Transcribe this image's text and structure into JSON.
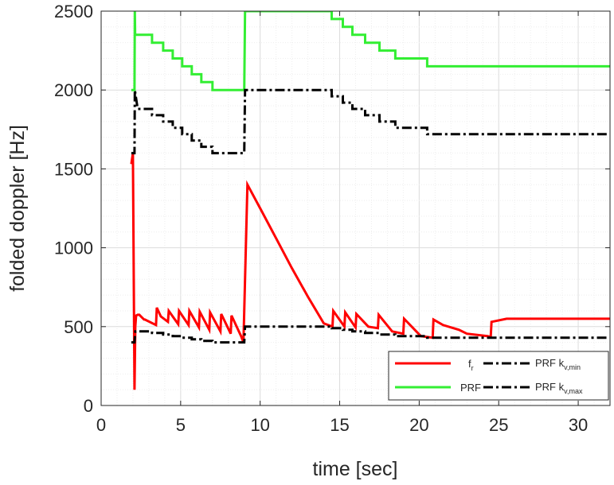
{
  "chart_data": {
    "type": "line",
    "title": "",
    "xlabel": "time [sec]",
    "ylabel": "folded doppler [Hz]",
    "xlim": [
      0,
      32
    ],
    "ylim": [
      0,
      2500
    ],
    "xticks": [
      "0",
      "5",
      "10",
      "15",
      "20",
      "25",
      "30"
    ],
    "yticks": [
      "0",
      "500",
      "1000",
      "1500",
      "2000",
      "2500"
    ],
    "grid": true,
    "legend_position": "bottom-right",
    "legend_columns": 2,
    "series": [
      {
        "name": "f",
        "name_sub": "r",
        "color": "#ff0000",
        "style": "solid",
        "x": [
          1.9,
          2.0,
          2.1,
          2.15,
          2.2,
          2.3,
          2.4,
          2.7,
          2.75,
          3.45,
          3.5,
          3.75,
          4.2,
          4.25,
          4.85,
          4.9,
          5.5,
          5.55,
          6.15,
          6.2,
          6.8,
          6.85,
          7.5,
          7.55,
          8.15,
          8.2,
          8.8,
          8.95,
          9.2,
          10.0,
          11.0,
          12.0,
          13.0,
          14.0,
          14.55,
          14.6,
          15.3,
          15.35,
          16.0,
          16.05,
          16.8,
          17.4,
          17.45,
          18.3,
          19.0,
          19.05,
          20.1,
          20.85,
          20.9,
          21.5,
          22.5,
          23.0,
          24.3,
          24.5,
          24.55,
          25.5,
          32.0
        ],
        "y": [
          1530,
          1600,
          100,
          500,
          570,
          575,
          575,
          545,
          545,
          510,
          620,
          565,
          530,
          600,
          515,
          600,
          510,
          600,
          495,
          595,
          480,
          590,
          470,
          580,
          455,
          570,
          440,
          400,
          1400,
          1250,
          1060,
          870,
          690,
          520,
          500,
          600,
          500,
          590,
          495,
          580,
          500,
          490,
          575,
          470,
          455,
          550,
          440,
          430,
          545,
          510,
          480,
          455,
          440,
          435,
          530,
          550,
          550
        ]
      },
      {
        "name": "PRF",
        "color": "#33ee33",
        "style": "solid",
        "x": [
          1.9,
          2.1,
          2.12,
          2.14,
          2.3,
          2.3,
          3.2,
          3.2,
          3.9,
          3.9,
          4.5,
          4.5,
          5.1,
          5.1,
          5.7,
          5.7,
          6.3,
          6.3,
          7.0,
          7.0,
          7.6,
          7.6,
          8.3,
          8.3,
          8.9,
          9.0,
          9.05,
          14.5,
          14.5,
          15.2,
          15.2,
          15.8,
          15.8,
          16.6,
          16.6,
          17.5,
          17.5,
          18.5,
          18.5,
          20.5,
          20.5,
          24.4,
          24.4,
          32.0
        ],
        "y": [
          2000,
          2000,
          2500,
          2350,
          2350,
          2350,
          2350,
          2300,
          2300,
          2250,
          2250,
          2200,
          2200,
          2150,
          2150,
          2100,
          2100,
          2050,
          2050,
          2000,
          2000,
          2000,
          2000,
          2000,
          2000,
          2000,
          2500,
          2500,
          2450,
          2450,
          2400,
          2400,
          2350,
          2350,
          2300,
          2300,
          2250,
          2250,
          2200,
          2200,
          2150,
          2150,
          2150,
          2150
        ]
      },
      {
        "name": "PRF k",
        "name_sub": "v,min",
        "color": "#000000",
        "style": "dashdot",
        "x": [
          1.9,
          2.1,
          2.12,
          2.3,
          3.2,
          3.2,
          3.9,
          3.9,
          4.5,
          4.5,
          5.1,
          5.1,
          5.7,
          5.7,
          6.3,
          6.3,
          7.0,
          7.0,
          7.6,
          7.6,
          8.3,
          8.3,
          8.9,
          9.0,
          9.05,
          14.5,
          14.5,
          15.2,
          15.2,
          15.8,
          15.8,
          16.6,
          16.6,
          17.5,
          17.5,
          18.5,
          18.5,
          20.5,
          20.5,
          24.4,
          24.4,
          32.0
        ],
        "y": [
          1600,
          1600,
          2000,
          1880,
          1880,
          1840,
          1840,
          1800,
          1800,
          1760,
          1760,
          1720,
          1720,
          1680,
          1680,
          1640,
          1640,
          1600,
          1600,
          1600,
          1600,
          1600,
          1600,
          1600,
          2000,
          2000,
          1960,
          1960,
          1920,
          1920,
          1880,
          1880,
          1840,
          1840,
          1800,
          1800,
          1760,
          1760,
          1720,
          1720,
          1720,
          1720
        ]
      },
      {
        "name": "PRF k",
        "name_sub": "v,max",
        "color": "#000000",
        "style": "dashdot",
        "x": [
          1.9,
          2.1,
          2.15,
          2.3,
          3.2,
          3.2,
          3.9,
          3.9,
          4.5,
          4.5,
          5.1,
          5.1,
          5.7,
          5.7,
          6.3,
          6.3,
          7.0,
          7.0,
          7.6,
          7.6,
          8.3,
          8.3,
          8.9,
          9.0,
          9.05,
          14.5,
          14.5,
          15.2,
          15.2,
          15.8,
          15.8,
          16.6,
          16.6,
          17.5,
          17.5,
          18.5,
          18.5,
          20.5,
          20.5,
          24.4,
          24.4,
          32.0
        ],
        "y": [
          400,
          400,
          470,
          470,
          470,
          460,
          460,
          450,
          450,
          440,
          440,
          430,
          430,
          420,
          420,
          410,
          410,
          400,
          400,
          400,
          400,
          400,
          400,
          400,
          500,
          500,
          490,
          490,
          480,
          480,
          470,
          470,
          460,
          460,
          450,
          450,
          440,
          440,
          430,
          430,
          430,
          430
        ]
      }
    ]
  }
}
